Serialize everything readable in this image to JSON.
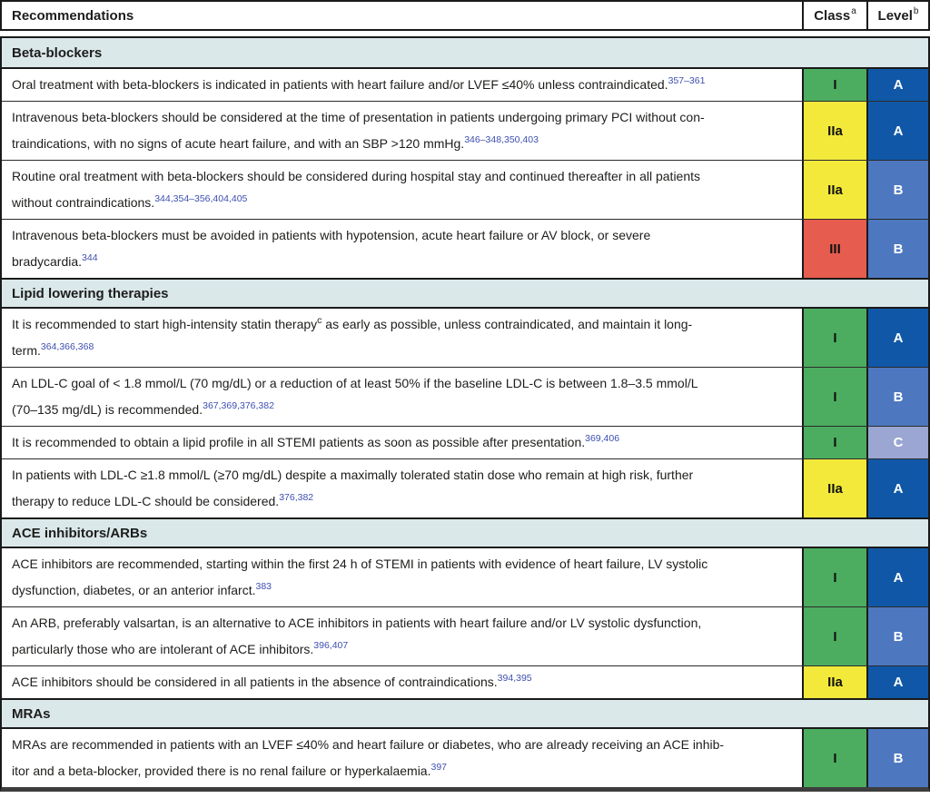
{
  "header": {
    "recommendations": "Recommendations",
    "class_label": "Class",
    "class_sup": "a",
    "level_label": "Level",
    "level_sup": "b"
  },
  "colors": {
    "section_bg": "#dae8ea",
    "ref_blue": "#3d4fb0",
    "class": {
      "I": "#4cad60",
      "IIa": "#f3e93b",
      "III": "#e65c4f"
    },
    "level": {
      "A": "#1058a7",
      "B": "#4d78bf",
      "C": "#9ba7d2"
    }
  },
  "table": {
    "rows": [
      {
        "type": "section",
        "label": "Beta-blockers"
      },
      {
        "type": "rec",
        "class": "I",
        "level": "A",
        "parts": [
          {
            "text": "Oral treatment with beta-blockers is indicated in patients with heart failure and/or LVEF ≤40% unless contraindicated."
          },
          {
            "sup": "357–361",
            "ref": true
          }
        ]
      },
      {
        "type": "rec",
        "class": "IIa",
        "level": "A",
        "parts": [
          {
            "text": "Intravenous beta-blockers should be considered at the time of presentation in patients undergoing primary PCI without con-\ntraindications, with no signs of acute heart failure, and with an SBP >120 mmHg."
          },
          {
            "sup": "346–348,350,403",
            "ref": true
          }
        ]
      },
      {
        "type": "rec",
        "class": "IIa",
        "level": "B",
        "parts": [
          {
            "text": "Routine oral treatment with beta-blockers should be considered during hospital stay and continued thereafter in all patients\nwithout contraindications."
          },
          {
            "sup": "344,354–356,404,405",
            "ref": true
          }
        ]
      },
      {
        "type": "rec",
        "class": "III",
        "level": "B",
        "parts": [
          {
            "text": "Intravenous beta-blockers must be avoided in patients with hypotension, acute heart failure or AV block, or severe\nbradycardia."
          },
          {
            "sup": "344",
            "ref": true
          }
        ]
      },
      {
        "type": "section",
        "label": "Lipid lowering therapies"
      },
      {
        "type": "rec",
        "class": "I",
        "level": "A",
        "parts": [
          {
            "text": "It is recommended to start high-intensity statin therapy"
          },
          {
            "sup": "c",
            "ref": false
          },
          {
            "text": " as early as possible, unless contraindicated, and maintain it long-\nterm."
          },
          {
            "sup": "364,366,368",
            "ref": true
          }
        ]
      },
      {
        "type": "rec",
        "class": "I",
        "level": "B",
        "parts": [
          {
            "text": "An LDL-C goal of < 1.8 mmol/L (70 mg/dL) or a reduction of at least 50% if the baseline LDL-C is between 1.8–3.5 mmol/L\n(70–135 mg/dL) is recommended."
          },
          {
            "sup": "367,369,376,382",
            "ref": true
          }
        ]
      },
      {
        "type": "rec",
        "class": "I",
        "level": "C",
        "parts": [
          {
            "text": "It is recommended to obtain a lipid profile in all STEMI patients as soon as possible after presentation."
          },
          {
            "sup": "369,406",
            "ref": true
          }
        ]
      },
      {
        "type": "rec",
        "class": "IIa",
        "level": "A",
        "parts": [
          {
            "text": "In patients with LDL-C ≥1.8 mmol/L (≥70 mg/dL) despite a maximally tolerated statin dose who remain at high risk, further\ntherapy to reduce LDL-C should be considered."
          },
          {
            "sup": "376,382",
            "ref": true
          }
        ]
      },
      {
        "type": "section",
        "label": "ACE inhibitors/ARBs"
      },
      {
        "type": "rec",
        "class": "I",
        "level": "A",
        "parts": [
          {
            "text": "ACE inhibitors are recommended, starting within the first 24 h of STEMI in patients with evidence of heart failure, LV systolic\ndysfunction, diabetes, or an anterior infarct."
          },
          {
            "sup": "383",
            "ref": true
          }
        ]
      },
      {
        "type": "rec",
        "class": "I",
        "level": "B",
        "parts": [
          {
            "text": "An ARB, preferably valsartan, is an alternative to ACE inhibitors in patients with heart failure and/or LV systolic dysfunction,\nparticularly those who are intolerant of ACE inhibitors."
          },
          {
            "sup": "396,407",
            "ref": true
          }
        ]
      },
      {
        "type": "rec",
        "class": "IIa",
        "level": "A",
        "parts": [
          {
            "text": "ACE inhibitors should be considered in all patients in the absence of contraindications."
          },
          {
            "sup": "394,395",
            "ref": true
          }
        ]
      },
      {
        "type": "section",
        "label": "MRAs"
      },
      {
        "type": "rec",
        "class": "I",
        "level": "B",
        "parts": [
          {
            "text": "MRAs are recommended in patients with an LVEF ≤40% and heart failure or diabetes, who are already receiving an ACE inhib-\nitor and a beta-blocker, provided there is no renal failure or hyperkalaemia."
          },
          {
            "sup": "397",
            "ref": true
          }
        ]
      }
    ]
  }
}
